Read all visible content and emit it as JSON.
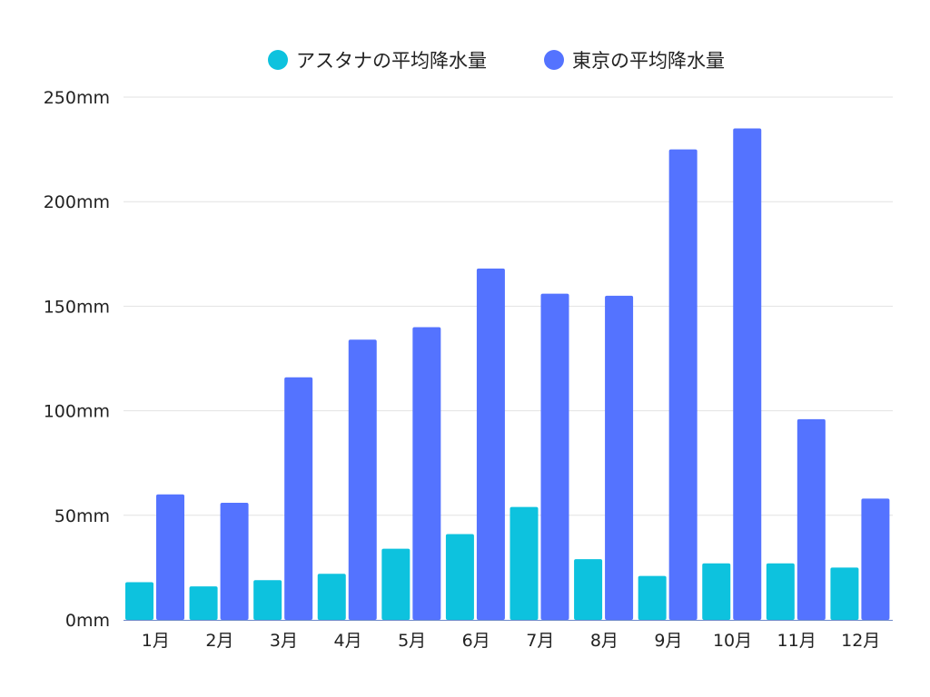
{
  "chart_data": {
    "type": "bar",
    "categories": [
      "1月",
      "2月",
      "3月",
      "4月",
      "5月",
      "6月",
      "7月",
      "8月",
      "9月",
      "10月",
      "11月",
      "12月"
    ],
    "series": [
      {
        "name": "アスタナの平均降水量",
        "color": "#0dc2de",
        "values": [
          18,
          16,
          19,
          22,
          34,
          41,
          54,
          29,
          21,
          27,
          27,
          25
        ]
      },
      {
        "name": "東京の平均降水量",
        "color": "#5473ff",
        "values": [
          60,
          56,
          116,
          134,
          140,
          168,
          156,
          155,
          225,
          235,
          96,
          58
        ]
      }
    ],
    "ylim": [
      0,
      250
    ],
    "yticks": [
      0,
      50,
      100,
      150,
      200,
      250
    ],
    "ytick_labels": [
      "0mm",
      "50mm",
      "100mm",
      "150mm",
      "200mm",
      "250mm"
    ],
    "grid": true,
    "legend_position": "top-center",
    "gridline_color": "#e2e2e2",
    "axis_color": "#6e88c8",
    "title": "",
    "xlabel": "",
    "ylabel": ""
  }
}
